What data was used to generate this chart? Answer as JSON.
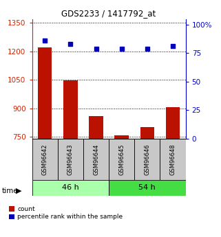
{
  "title": "GDS2233 / 1417792_at",
  "samples": [
    "GSM96642",
    "GSM96643",
    "GSM96644",
    "GSM96645",
    "GSM96646",
    "GSM96648"
  ],
  "count_values": [
    1220,
    1048,
    860,
    757,
    800,
    905
  ],
  "percentile_values": [
    86,
    83,
    79,
    79,
    79,
    81
  ],
  "group_labels": [
    "46 h",
    "54 h"
  ],
  "group_ranges": [
    [
      0,
      2
    ],
    [
      3,
      5
    ]
  ],
  "group_colors": [
    "#AAFFAA",
    "#44DD44"
  ],
  "ylim_left": [
    740,
    1370
  ],
  "ylim_right": [
    0,
    105
  ],
  "yticks_left": [
    750,
    900,
    1050,
    1200,
    1350
  ],
  "yticks_right": [
    0,
    25,
    50,
    75,
    100
  ],
  "bar_color": "#BB1100",
  "dot_color": "#0000BB",
  "label_count": "count",
  "label_percentile": "percentile rank within the sample"
}
